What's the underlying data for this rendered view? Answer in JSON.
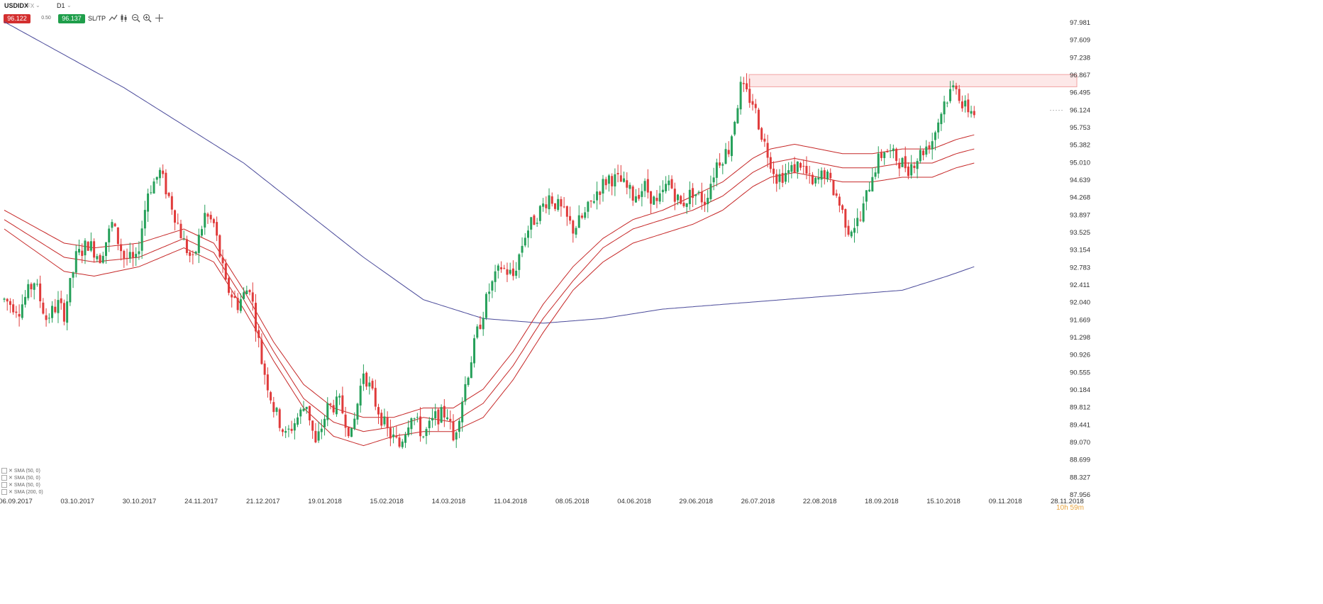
{
  "toolbar": {
    "symbol": "USDIDX",
    "symbol_suffix": "FX",
    "timeframe": "D1",
    "bid": "96.122",
    "spread": "0.50",
    "ask": "96.137",
    "sltp_label": "SL/TP",
    "icons": [
      "line-chart-icon",
      "candles-icon",
      "zoom-out-icon",
      "zoom-in-icon",
      "crosshair-icon"
    ]
  },
  "colors": {
    "bull": "#26a05a",
    "bear": "#e03b3b",
    "sma50": "#c62828",
    "sma200": "#4a4a9a",
    "zone_fill": "#fde8e8",
    "zone_stroke": "#f2a3a3",
    "bid_bg": "#d32f2f",
    "ask_bg": "#1e9e4a"
  },
  "legend": [
    "SMA (50, 0)",
    "SMA (50, 0)",
    "SMA (50, 0)",
    "SMA (200, 0)"
  ],
  "countdown": "10h 59m",
  "chart_data": {
    "type": "candlestick",
    "y_ticks": [
      "97.981",
      "97.609",
      "97.238",
      "96.867",
      "96.495",
      "96.124",
      "95.753",
      "95.382",
      "95.010",
      "94.639",
      "94.268",
      "93.897",
      "93.525",
      "93.154",
      "92.783",
      "92.411",
      "92.040",
      "91.669",
      "91.298",
      "90.926",
      "90.555",
      "90.184",
      "89.812",
      "89.441",
      "89.070",
      "88.699",
      "88.327",
      "87.956"
    ],
    "x_ticks": [
      "06.09.2017",
      "03.10.2017",
      "30.10.2017",
      "24.11.2017",
      "21.12.2017",
      "19.01.2018",
      "15.02.2018",
      "14.03.2018",
      "11.04.2018",
      "08.05.2018",
      "04.06.2018",
      "29.06.2018",
      "26.07.2018",
      "22.08.2018",
      "18.09.2018",
      "15.10.2018",
      "09.11.2018",
      "28.11.2018"
    ],
    "ylim": [
      87.956,
      97.981
    ],
    "resistance_zone": [
      96.62,
      96.88
    ],
    "last_price": 96.12,
    "close_path": [
      [
        0,
        92.1
      ],
      [
        5,
        91.9
      ],
      [
        10,
        92.5
      ],
      [
        14,
        91.7
      ],
      [
        18,
        92.0
      ],
      [
        20,
        91.8
      ],
      [
        24,
        93.0
      ],
      [
        28,
        93.3
      ],
      [
        32,
        93.0
      ],
      [
        36,
        93.7
      ],
      [
        40,
        93.0
      ],
      [
        44,
        92.9
      ],
      [
        48,
        94.4
      ],
      [
        52,
        94.8
      ],
      [
        56,
        94.1
      ],
      [
        60,
        93.3
      ],
      [
        63,
        92.9
      ],
      [
        67,
        93.9
      ],
      [
        70,
        93.7
      ],
      [
        74,
        92.4
      ],
      [
        78,
        92.0
      ],
      [
        82,
        92.4
      ],
      [
        86,
        90.8
      ],
      [
        90,
        89.8
      ],
      [
        94,
        89.2
      ],
      [
        98,
        89.6
      ],
      [
        101,
        89.9
      ],
      [
        104,
        89.0
      ],
      [
        108,
        89.8
      ],
      [
        112,
        89.9
      ],
      [
        116,
        89.2
      ],
      [
        120,
        90.6
      ],
      [
        124,
        89.9
      ],
      [
        128,
        89.3
      ],
      [
        132,
        89.0
      ],
      [
        136,
        89.7
      ],
      [
        140,
        89.2
      ],
      [
        144,
        89.6
      ],
      [
        148,
        89.7
      ],
      [
        150,
        89.1
      ],
      [
        154,
        90.3
      ],
      [
        158,
        91.4
      ],
      [
        162,
        92.3
      ],
      [
        166,
        92.8
      ],
      [
        170,
        92.6
      ],
      [
        174,
        93.5
      ],
      [
        178,
        93.9
      ],
      [
        182,
        94.3
      ],
      [
        186,
        94.0
      ],
      [
        190,
        93.6
      ],
      [
        194,
        93.9
      ],
      [
        198,
        94.4
      ],
      [
        202,
        94.7
      ],
      [
        206,
        94.6
      ],
      [
        210,
        94.3
      ],
      [
        214,
        94.5
      ],
      [
        218,
        94.1
      ],
      [
        222,
        94.6
      ],
      [
        226,
        94.1
      ],
      [
        230,
        94.4
      ],
      [
        234,
        94.2
      ],
      [
        238,
        95.0
      ],
      [
        242,
        95.3
      ],
      [
        246,
        96.6
      ],
      [
        250,
        96.3
      ],
      [
        254,
        95.4
      ],
      [
        258,
        94.7
      ],
      [
        262,
        94.8
      ],
      [
        266,
        95.0
      ],
      [
        270,
        94.5
      ],
      [
        274,
        94.8
      ],
      [
        278,
        94.3
      ],
      [
        282,
        93.6
      ],
      [
        286,
        93.8
      ],
      [
        290,
        94.8
      ],
      [
        294,
        95.3
      ],
      [
        298,
        95.1
      ],
      [
        302,
        94.9
      ],
      [
        306,
        95.2
      ],
      [
        310,
        95.5
      ],
      [
        314,
        96.3
      ],
      [
        318,
        96.7
      ],
      [
        320,
        96.2
      ],
      [
        324,
        96.1
      ]
    ],
    "sma50_upper": [
      [
        0,
        94.0
      ],
      [
        20,
        93.3
      ],
      [
        30,
        93.2
      ],
      [
        45,
        93.3
      ],
      [
        60,
        93.6
      ],
      [
        70,
        93.3
      ],
      [
        80,
        92.3
      ],
      [
        90,
        91.2
      ],
      [
        100,
        90.3
      ],
      [
        110,
        89.8
      ],
      [
        120,
        89.6
      ],
      [
        130,
        89.6
      ],
      [
        140,
        89.8
      ],
      [
        150,
        89.8
      ],
      [
        160,
        90.2
      ],
      [
        170,
        91.0
      ],
      [
        180,
        92.0
      ],
      [
        190,
        92.8
      ],
      [
        200,
        93.4
      ],
      [
        210,
        93.8
      ],
      [
        220,
        94.0
      ],
      [
        230,
        94.3
      ],
      [
        240,
        94.6
      ],
      [
        250,
        95.1
      ],
      [
        256,
        95.3
      ],
      [
        264,
        95.4
      ],
      [
        272,
        95.3
      ],
      [
        280,
        95.2
      ],
      [
        290,
        95.2
      ],
      [
        300,
        95.3
      ],
      [
        310,
        95.3
      ],
      [
        318,
        95.5
      ],
      [
        324,
        95.6
      ]
    ],
    "sma50_mid": [
      [
        0,
        93.8
      ],
      [
        20,
        93.0
      ],
      [
        30,
        92.9
      ],
      [
        45,
        93.0
      ],
      [
        60,
        93.4
      ],
      [
        70,
        93.1
      ],
      [
        80,
        92.1
      ],
      [
        90,
        91.0
      ],
      [
        100,
        90.0
      ],
      [
        110,
        89.5
      ],
      [
        120,
        89.3
      ],
      [
        130,
        89.4
      ],
      [
        140,
        89.6
      ],
      [
        150,
        89.5
      ],
      [
        160,
        89.9
      ],
      [
        170,
        90.7
      ],
      [
        180,
        91.7
      ],
      [
        190,
        92.5
      ],
      [
        200,
        93.2
      ],
      [
        210,
        93.6
      ],
      [
        220,
        93.8
      ],
      [
        230,
        94.0
      ],
      [
        240,
        94.3
      ],
      [
        250,
        94.8
      ],
      [
        256,
        95.0
      ],
      [
        264,
        95.1
      ],
      [
        272,
        95.0
      ],
      [
        280,
        94.9
      ],
      [
        290,
        94.9
      ],
      [
        300,
        95.0
      ],
      [
        310,
        95.0
      ],
      [
        318,
        95.2
      ],
      [
        324,
        95.3
      ]
    ],
    "sma50_lower": [
      [
        0,
        93.6
      ],
      [
        20,
        92.7
      ],
      [
        30,
        92.6
      ],
      [
        45,
        92.8
      ],
      [
        60,
        93.2
      ],
      [
        70,
        92.9
      ],
      [
        80,
        91.9
      ],
      [
        90,
        90.8
      ],
      [
        100,
        89.8
      ],
      [
        110,
        89.2
      ],
      [
        120,
        89.0
      ],
      [
        130,
        89.2
      ],
      [
        140,
        89.3
      ],
      [
        150,
        89.3
      ],
      [
        160,
        89.6
      ],
      [
        170,
        90.4
      ],
      [
        180,
        91.4
      ],
      [
        190,
        92.3
      ],
      [
        200,
        92.9
      ],
      [
        210,
        93.3
      ],
      [
        220,
        93.5
      ],
      [
        230,
        93.7
      ],
      [
        240,
        94.0
      ],
      [
        250,
        94.5
      ],
      [
        256,
        94.7
      ],
      [
        264,
        94.8
      ],
      [
        272,
        94.7
      ],
      [
        280,
        94.6
      ],
      [
        290,
        94.6
      ],
      [
        300,
        94.7
      ],
      [
        310,
        94.7
      ],
      [
        318,
        94.9
      ],
      [
        324,
        95.0
      ]
    ],
    "sma200": [
      [
        0,
        98.0
      ],
      [
        20,
        97.3
      ],
      [
        40,
        96.6
      ],
      [
        60,
        95.8
      ],
      [
        80,
        95.0
      ],
      [
        100,
        94.0
      ],
      [
        120,
        93.0
      ],
      [
        140,
        92.1
      ],
      [
        160,
        91.7
      ],
      [
        180,
        91.6
      ],
      [
        200,
        91.7
      ],
      [
        220,
        91.9
      ],
      [
        240,
        92.0
      ],
      [
        260,
        92.1
      ],
      [
        280,
        92.2
      ],
      [
        300,
        92.3
      ],
      [
        315,
        92.6
      ],
      [
        324,
        92.8
      ]
    ]
  }
}
